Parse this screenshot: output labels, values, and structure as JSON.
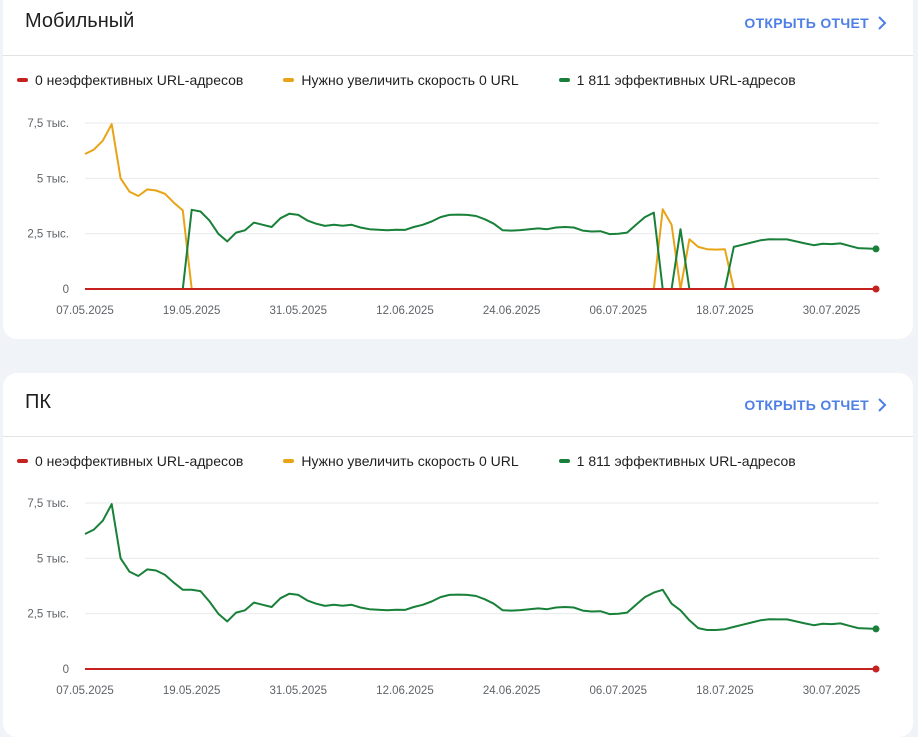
{
  "cards": [
    {
      "title": "Мобильный",
      "open_report": "ОТКРЫТЬ ОТЧЕТ",
      "legend": [
        {
          "label": "0 неэффективных URL-адресов",
          "color": "#c5221f"
        },
        {
          "label": "Нужно увеличить скорость 0 URL",
          "color": "#e8a317"
        },
        {
          "label": "1 811 эффективных URL-адресов",
          "color": "#188038"
        }
      ]
    },
    {
      "title": "ПК",
      "open_report": "ОТКРЫТЬ ОТЧЕТ",
      "legend": [
        {
          "label": "0 неэффективных URL-адресов",
          "color": "#c5221f"
        },
        {
          "label": "Нужно увеличить скорость 0 URL",
          "color": "#e8a317"
        },
        {
          "label": "1 811 эффективных URL-адресов",
          "color": "#188038"
        }
      ]
    }
  ],
  "chart_data": [
    {
      "type": "line",
      "ylim": [
        0,
        7500
      ],
      "yticks": [
        {
          "label": "7,5 тыс.",
          "value": 7500
        },
        {
          "label": "5 тыс.",
          "value": 5000
        },
        {
          "label": "2,5 тыс.",
          "value": 2500
        },
        {
          "label": "0",
          "value": 0
        }
      ],
      "xticks": [
        {
          "label": "07.05.2025",
          "day": 0
        },
        {
          "label": "19.05.2025",
          "day": 12
        },
        {
          "label": "31.05.2025",
          "day": 24
        },
        {
          "label": "12.06.2025",
          "day": 36
        },
        {
          "label": "24.06.2025",
          "day": 48
        },
        {
          "label": "06.07.2025",
          "day": 60
        },
        {
          "label": "18.07.2025",
          "day": 72
        },
        {
          "label": "30.07.2025",
          "day": 84
        }
      ],
      "series": [
        {
          "name": "0 неэффективных URL-адресов",
          "color": "#c5221f",
          "points": [
            [
              0,
              0
            ],
            [
              89,
              0
            ]
          ],
          "end_dot": true
        },
        {
          "name": "Нужно увеличить скорость 0 URL",
          "color": "#e8a317",
          "points": [
            [
              0,
              6100
            ],
            [
              1,
              6300
            ],
            [
              2,
              6700
            ],
            [
              3,
              7450
            ],
            [
              4,
              5000
            ],
            [
              5,
              4400
            ],
            [
              6,
              4200
            ],
            [
              7,
              4500
            ],
            [
              8,
              4450
            ],
            [
              9,
              4300
            ],
            [
              10,
              3900
            ],
            [
              11,
              3550
            ],
            [
              12,
              0
            ],
            [
              13,
              0
            ],
            [
              64,
              0
            ],
            [
              65,
              3600
            ],
            [
              66,
              2900
            ],
            [
              67,
              0
            ],
            [
              68,
              2250
            ],
            [
              69,
              1900
            ],
            [
              70,
              1800
            ],
            [
              71,
              1780
            ],
            [
              72,
              1800
            ],
            [
              73,
              0
            ],
            [
              74,
              0
            ]
          ]
        },
        {
          "name": "1 811 эффективных URL-адресов",
          "color": "#188038",
          "points": [
            [
              0,
              0
            ],
            [
              11,
              0
            ],
            [
              12,
              3580
            ],
            [
              13,
              3500
            ],
            [
              14,
              3100
            ],
            [
              15,
              2500
            ],
            [
              16,
              2150
            ],
            [
              17,
              2550
            ],
            [
              18,
              2650
            ],
            [
              19,
              3000
            ],
            [
              20,
              2900
            ],
            [
              21,
              2800
            ],
            [
              22,
              3200
            ],
            [
              23,
              3400
            ],
            [
              24,
              3350
            ],
            [
              25,
              3100
            ],
            [
              26,
              2950
            ],
            [
              27,
              2850
            ],
            [
              28,
              2900
            ],
            [
              29,
              2860
            ],
            [
              30,
              2900
            ],
            [
              31,
              2780
            ],
            [
              32,
              2700
            ],
            [
              33,
              2680
            ],
            [
              34,
              2650
            ],
            [
              35,
              2680
            ],
            [
              36,
              2670
            ],
            [
              37,
              2800
            ],
            [
              38,
              2900
            ],
            [
              39,
              3050
            ],
            [
              40,
              3250
            ],
            [
              41,
              3350
            ],
            [
              42,
              3360
            ],
            [
              43,
              3350
            ],
            [
              44,
              3300
            ],
            [
              45,
              3150
            ],
            [
              46,
              2950
            ],
            [
              47,
              2650
            ],
            [
              48,
              2640
            ],
            [
              49,
              2660
            ],
            [
              50,
              2700
            ],
            [
              51,
              2740
            ],
            [
              52,
              2700
            ],
            [
              53,
              2780
            ],
            [
              54,
              2800
            ],
            [
              55,
              2780
            ],
            [
              56,
              2640
            ],
            [
              57,
              2600
            ],
            [
              58,
              2610
            ],
            [
              59,
              2480
            ],
            [
              60,
              2500
            ],
            [
              61,
              2550
            ],
            [
              62,
              2900
            ],
            [
              63,
              3250
            ],
            [
              64,
              3450
            ],
            [
              65,
              0
            ],
            [
              66,
              0
            ],
            [
              67,
              2700
            ],
            [
              68,
              0
            ],
            [
              69,
              0
            ],
            [
              70,
              0
            ],
            [
              71,
              0
            ],
            [
              72,
              0
            ],
            [
              73,
              1900
            ],
            [
              74,
              2000
            ],
            [
              75,
              2100
            ],
            [
              76,
              2200
            ],
            [
              77,
              2250
            ],
            [
              78,
              2240
            ],
            [
              79,
              2240
            ],
            [
              80,
              2150
            ],
            [
              81,
              2060
            ],
            [
              82,
              1980
            ],
            [
              83,
              2040
            ],
            [
              84,
              2030
            ],
            [
              85,
              2060
            ],
            [
              86,
              1950
            ],
            [
              87,
              1850
            ],
            [
              88,
              1830
            ],
            [
              89,
              1811
            ]
          ],
          "end_dot": true
        }
      ]
    },
    {
      "type": "line",
      "ylim": [
        0,
        7500
      ],
      "yticks": [
        {
          "label": "7,5 тыс.",
          "value": 7500
        },
        {
          "label": "5 тыс.",
          "value": 5000
        },
        {
          "label": "2,5 тыс.",
          "value": 2500
        },
        {
          "label": "0",
          "value": 0
        }
      ],
      "xticks": [
        {
          "label": "07.05.2025",
          "day": 0
        },
        {
          "label": "19.05.2025",
          "day": 12
        },
        {
          "label": "31.05.2025",
          "day": 24
        },
        {
          "label": "12.06.2025",
          "day": 36
        },
        {
          "label": "24.06.2025",
          "day": 48
        },
        {
          "label": "06.07.2025",
          "day": 60
        },
        {
          "label": "18.07.2025",
          "day": 72
        },
        {
          "label": "30.07.2025",
          "day": 84
        }
      ],
      "series": [
        {
          "name": "0 неэффективных URL-адресов",
          "color": "#c5221f",
          "points": [
            [
              0,
              0
            ],
            [
              89,
              0
            ]
          ],
          "end_dot": true
        },
        {
          "name": "1 811 эффективных URL-адресов",
          "color": "#188038",
          "points": [
            [
              0,
              6100
            ],
            [
              1,
              6300
            ],
            [
              2,
              6700
            ],
            [
              3,
              7450
            ],
            [
              4,
              5000
            ],
            [
              5,
              4400
            ],
            [
              6,
              4200
            ],
            [
              7,
              4500
            ],
            [
              8,
              4450
            ],
            [
              9,
              4250
            ],
            [
              10,
              3900
            ],
            [
              11,
              3580
            ],
            [
              12,
              3580
            ],
            [
              13,
              3520
            ],
            [
              14,
              3050
            ],
            [
              15,
              2500
            ],
            [
              16,
              2150
            ],
            [
              17,
              2550
            ],
            [
              18,
              2650
            ],
            [
              19,
              3000
            ],
            [
              20,
              2900
            ],
            [
              21,
              2800
            ],
            [
              22,
              3200
            ],
            [
              23,
              3400
            ],
            [
              24,
              3350
            ],
            [
              25,
              3100
            ],
            [
              26,
              2950
            ],
            [
              27,
              2850
            ],
            [
              28,
              2900
            ],
            [
              29,
              2860
            ],
            [
              30,
              2900
            ],
            [
              31,
              2780
            ],
            [
              32,
              2700
            ],
            [
              33,
              2680
            ],
            [
              34,
              2650
            ],
            [
              35,
              2680
            ],
            [
              36,
              2670
            ],
            [
              37,
              2800
            ],
            [
              38,
              2900
            ],
            [
              39,
              3050
            ],
            [
              40,
              3250
            ],
            [
              41,
              3350
            ],
            [
              42,
              3360
            ],
            [
              43,
              3350
            ],
            [
              44,
              3300
            ],
            [
              45,
              3150
            ],
            [
              46,
              2950
            ],
            [
              47,
              2650
            ],
            [
              48,
              2640
            ],
            [
              49,
              2660
            ],
            [
              50,
              2700
            ],
            [
              51,
              2740
            ],
            [
              52,
              2700
            ],
            [
              53,
              2780
            ],
            [
              54,
              2800
            ],
            [
              55,
              2780
            ],
            [
              56,
              2640
            ],
            [
              57,
              2600
            ],
            [
              58,
              2610
            ],
            [
              59,
              2480
            ],
            [
              60,
              2500
            ],
            [
              61,
              2550
            ],
            [
              62,
              2900
            ],
            [
              63,
              3250
            ],
            [
              64,
              3450
            ],
            [
              65,
              3580
            ],
            [
              66,
              2950
            ],
            [
              67,
              2650
            ],
            [
              68,
              2200
            ],
            [
              69,
              1850
            ],
            [
              70,
              1760
            ],
            [
              71,
              1760
            ],
            [
              72,
              1800
            ],
            [
              73,
              1900
            ],
            [
              74,
              2000
            ],
            [
              75,
              2100
            ],
            [
              76,
              2200
            ],
            [
              77,
              2250
            ],
            [
              78,
              2240
            ],
            [
              79,
              2240
            ],
            [
              80,
              2150
            ],
            [
              81,
              2060
            ],
            [
              82,
              1980
            ],
            [
              83,
              2040
            ],
            [
              84,
              2030
            ],
            [
              85,
              2060
            ],
            [
              86,
              1950
            ],
            [
              87,
              1850
            ],
            [
              88,
              1830
            ],
            [
              89,
              1811
            ]
          ],
          "end_dot": true
        }
      ]
    }
  ]
}
